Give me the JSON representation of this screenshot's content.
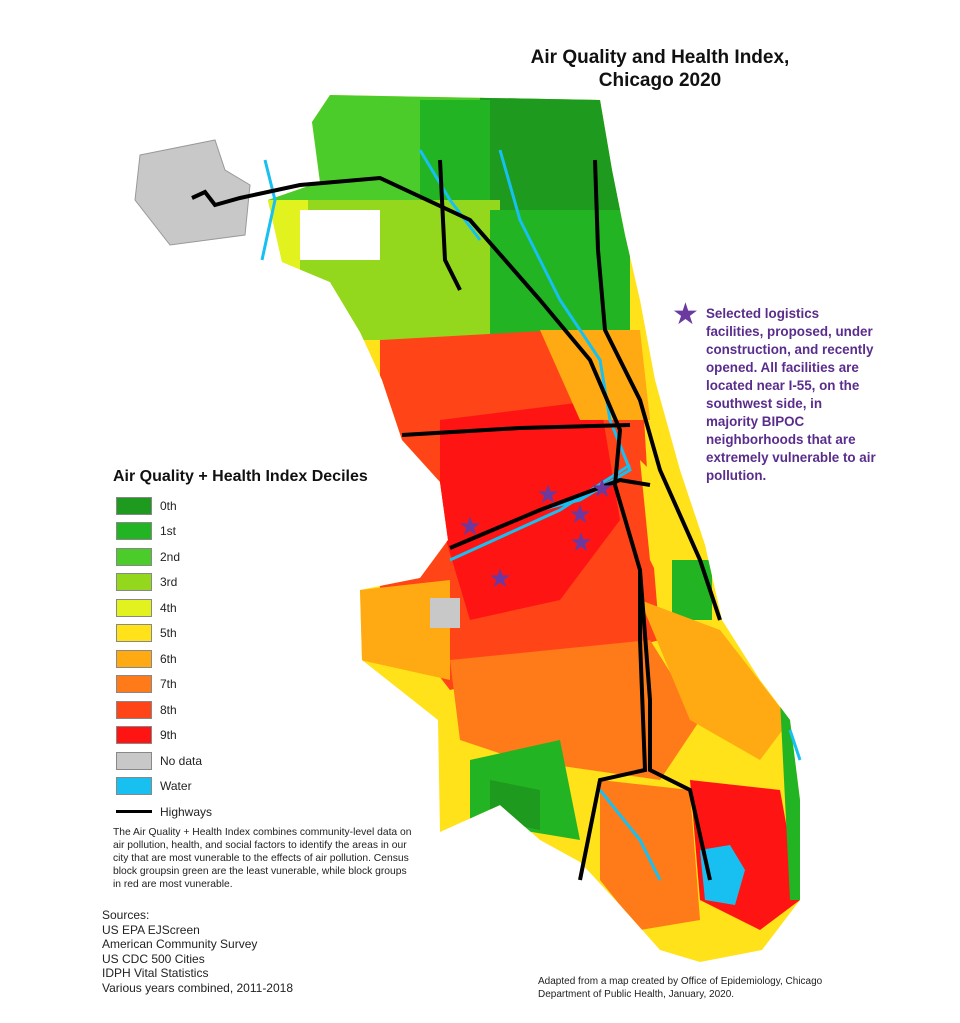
{
  "title": "Air Quality and Health Index, Chicago 2020",
  "title_lines": [
    "Air Quality and Health Index,",
    "Chicago 2020"
  ],
  "legend": {
    "title": "Air Quality + Health Index Deciles",
    "items": [
      {
        "label": "0th",
        "color": "#1e9a1e"
      },
      {
        "label": "1st",
        "color": "#22b422"
      },
      {
        "label": "2nd",
        "color": "#4ccc2a"
      },
      {
        "label": "3rd",
        "color": "#94d81e"
      },
      {
        "label": "4th",
        "color": "#e2f21e"
      },
      {
        "label": "5th",
        "color": "#ffe21a"
      },
      {
        "label": "6th",
        "color": "#ffaa12"
      },
      {
        "label": "7th",
        "color": "#ff7a18"
      },
      {
        "label": "8th",
        "color": "#ff4418"
      },
      {
        "label": "9th",
        "color": "#ff1414"
      },
      {
        "label": "No data",
        "color": "#c8c8c8"
      },
      {
        "label": "Water",
        "color": "#18c0f2"
      }
    ],
    "highways_label": "Highways",
    "highway_color": "#000000"
  },
  "description": "The Air Quality + Health Index combines community-level data on air pollution, health, and social factors to identify the areas in our city that are most vunerable to the effects of air pollution.  Census block groupsin green are the least vunerable, while block groups in red are most vunerable.",
  "sources": [
    "Sources:",
    "US EPA EJScreen",
    "American Community Survey",
    "US CDC 500 Cities",
    "IDPH Vital Statistics",
    "Various years combined, 2011-2018"
  ],
  "annotation": {
    "icon": "star-icon",
    "color": "#6a3aa0",
    "text": "Selected logistics facilities, proposed, under construction, and recently opened. All facilities are located near I-55, on the southwest side, in majority BIPOC neighborhoods that are extremely vulnerable to air pollution."
  },
  "credit": "Adapted from a map created by Office of Epidemiology, Chicago Department of Public Health, January, 2020."
}
